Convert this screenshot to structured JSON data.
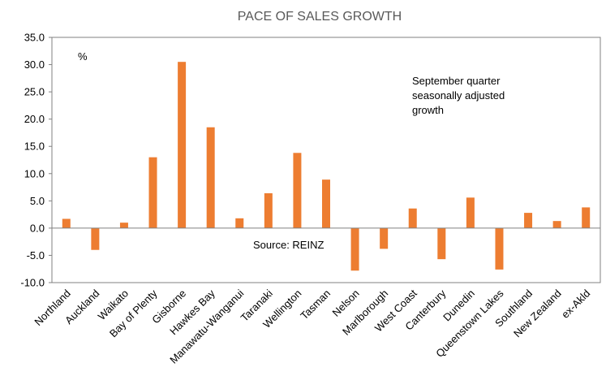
{
  "chart_data": {
    "type": "bar",
    "title": "PACE OF SALES GROWTH",
    "unit_label": "%",
    "annotation_lines": [
      "September quarter",
      "seasonally adjusted",
      "growth"
    ],
    "source": "Source: REINZ",
    "categories": [
      "Northland",
      "Auckland",
      "Waikato",
      "Bay of Plenty",
      "Gisborne",
      "Hawkes Bay",
      "Manawatu-Wanganui",
      "Taranaki",
      "Wellington",
      "Tasman",
      "Nelson",
      "Marlborough",
      "West Coast",
      "Canterbury",
      "Dunedin",
      "Queenstown Lakes",
      "Southland",
      "New Zealand",
      "ex-Akld"
    ],
    "values": [
      1.7,
      -4.0,
      1.0,
      13.0,
      30.5,
      18.5,
      1.8,
      6.4,
      13.8,
      8.9,
      -7.8,
      -3.8,
      3.6,
      -5.7,
      5.6,
      -7.6,
      2.8,
      1.3,
      3.8
    ],
    "ylim": [
      -10,
      35
    ],
    "yticks": [
      "-10.0",
      "-5.0",
      "0.0",
      "5.0",
      "10.0",
      "15.0",
      "20.0",
      "25.0",
      "30.0",
      "35.0"
    ],
    "bar_color": "#ED7D31",
    "xlabel": "",
    "ylabel": ""
  }
}
